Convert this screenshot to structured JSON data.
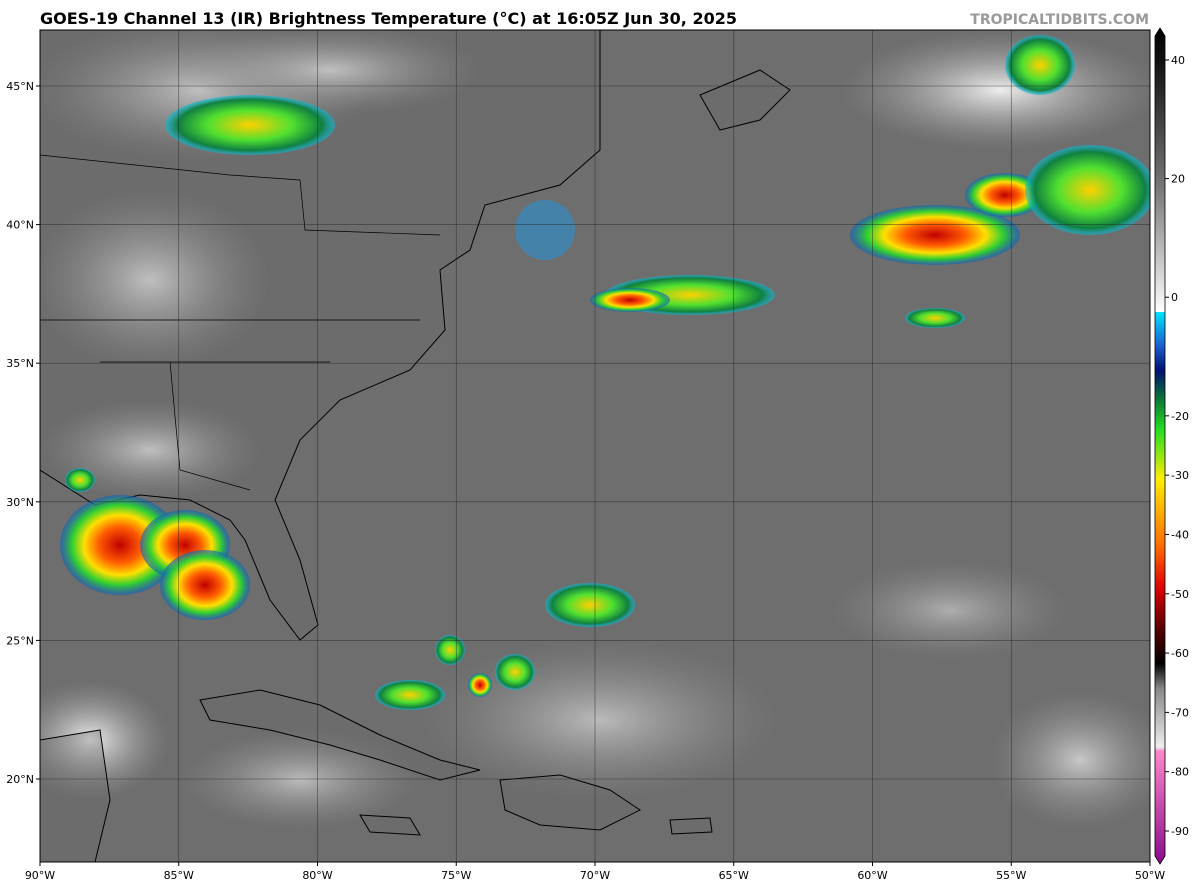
{
  "header": {
    "title": "GOES-19 Channel 13 (IR) Brightness Temperature (°C) at 16:05Z Jun 30, 2025",
    "source": "TROPICALTIDBITS.COM"
  },
  "map": {
    "lon_labels": [
      "90°W",
      "85°W",
      "80°W",
      "75°W",
      "70°W",
      "65°W",
      "60°W",
      "55°W",
      "50°W"
    ],
    "lat_labels": [
      "45°N",
      "40°N",
      "35°N",
      "30°N",
      "25°N",
      "20°N"
    ]
  },
  "colorbar": {
    "ticks": [
      40,
      20,
      0,
      -20,
      -30,
      -40,
      -50,
      -60,
      -70,
      -80,
      -90
    ]
  }
}
